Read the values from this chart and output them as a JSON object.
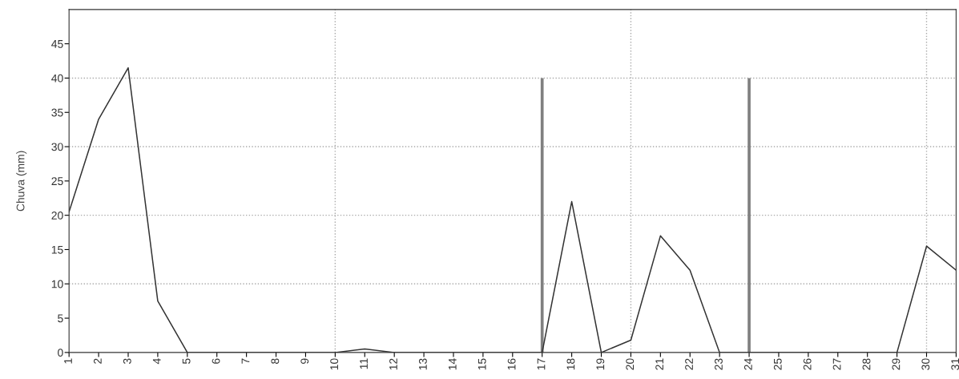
{
  "chart_data": {
    "type": "line",
    "ylabel": "Chuva (mm)",
    "x": [
      1,
      2,
      3,
      4,
      5,
      6,
      7,
      8,
      9,
      10,
      11,
      12,
      13,
      14,
      15,
      16,
      17,
      18,
      19,
      20,
      21,
      22,
      23,
      24,
      25,
      26,
      27,
      28,
      29,
      30,
      31
    ],
    "series": [
      {
        "color": "#333333",
        "values": [
          20.5,
          34,
          41.5,
          7.5,
          0,
          0,
          0,
          0,
          0,
          0,
          0.5,
          0,
          0,
          0,
          0,
          0,
          0,
          22,
          0,
          1.8,
          17,
          12,
          0,
          0,
          0,
          0,
          0,
          0,
          0,
          15.5,
          12
        ]
      },
      {
        "type": "bar",
        "color": "#808080",
        "values": [
          null,
          null,
          null,
          null,
          null,
          null,
          null,
          null,
          null,
          null,
          null,
          null,
          null,
          null,
          null,
          null,
          40,
          null,
          null,
          null,
          null,
          null,
          null,
          40,
          null,
          null,
          null,
          null,
          null,
          null,
          null
        ]
      }
    ],
    "xlim": [
      1,
      31
    ],
    "xticks": [
      1,
      2,
      3,
      4,
      5,
      6,
      7,
      8,
      9,
      10,
      11,
      12,
      13,
      14,
      15,
      16,
      17,
      18,
      19,
      20,
      21,
      22,
      23,
      24,
      25,
      26,
      27,
      28,
      29,
      30,
      31
    ],
    "ylim": [
      0,
      50
    ],
    "yticks": [
      0,
      5,
      10,
      15,
      20,
      25,
      30,
      35,
      40,
      45
    ],
    "ref_lines": [
      {
        "axis": "x",
        "value": 10,
        "color": "#aaaaaa",
        "line_style": "dotted"
      },
      {
        "axis": "x",
        "value": 20,
        "color": "#aaaaaa",
        "line_style": "dotted"
      },
      {
        "axis": "x",
        "value": 30,
        "color": "#aaaaaa",
        "line_style": "dotted"
      },
      {
        "axis": "y",
        "value": 10,
        "color": "#aaaaaa",
        "line_style": "dotted"
      },
      {
        "axis": "y",
        "value": 20,
        "color": "#aaaaaa",
        "line_style": "dotted"
      },
      {
        "axis": "y",
        "value": 30,
        "color": "#aaaaaa",
        "line_style": "dotted"
      },
      {
        "axis": "y",
        "value": 40,
        "color": "#aaaaaa",
        "line_style": "dotted"
      }
    ],
    "grid": false,
    "legend": false,
    "marker": "none",
    "line_style": "solid"
  }
}
